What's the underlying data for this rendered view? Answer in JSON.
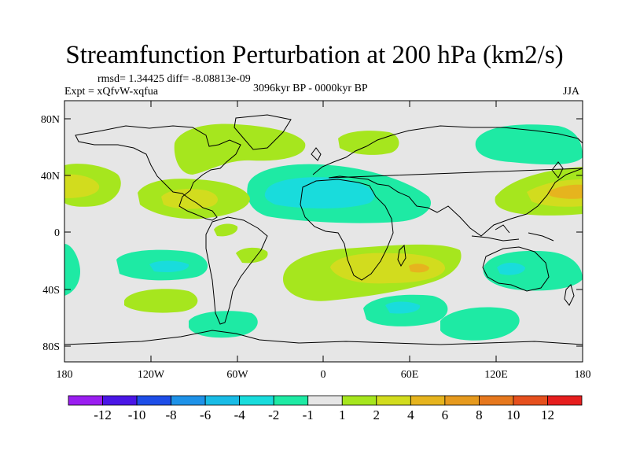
{
  "title": "Streamfunction Perturbation at 200 hPa (km2/s)",
  "stats": "rmsd= 1.34425 diff= -8.08813e-09",
  "experiment": "Expt = xQfvW-xqfua",
  "period": "3096kyr BP - 0000kyr BP",
  "season": "JJA",
  "lat_ticks": [
    "80N",
    "40N",
    "0",
    "40S",
    "80S"
  ],
  "lon_ticks": [
    "180",
    "120W",
    "60W",
    "0",
    "60E",
    "120E",
    "180"
  ],
  "colorbar": {
    "colors": [
      "#9a1ef0",
      "#4a16e6",
      "#1e4ee8",
      "#1e92e8",
      "#19bce6",
      "#19dcdc",
      "#1eeaa4",
      "#e6e6e6",
      "#a6e61e",
      "#d2dc1e",
      "#e6b41e",
      "#e69a1e",
      "#e6781e",
      "#e6501e",
      "#e61e1e"
    ],
    "labels": [
      "-12",
      "-10",
      "-8",
      "-6",
      "-4",
      "-2",
      "-1",
      "1",
      "2",
      "4",
      "6",
      "8",
      "10",
      "12"
    ]
  },
  "palette": {
    "background": "#e6e6e6",
    "neg1": "#1eeaa4",
    "neg2": "#19dcdc",
    "pos1": "#a6e61e",
    "pos2": "#d2dc1e",
    "pos3": "#e6b41e"
  }
}
